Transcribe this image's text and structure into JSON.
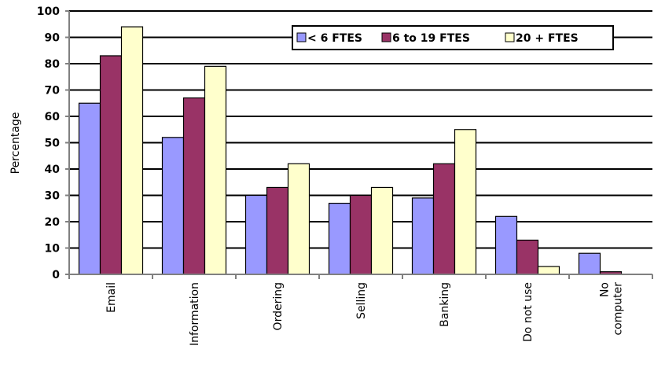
{
  "chart_data": {
    "type": "bar",
    "title": "",
    "xlabel": "",
    "ylabel": "Percentage",
    "ylim": [
      0,
      100
    ],
    "yticks": [
      0,
      10,
      20,
      30,
      40,
      50,
      60,
      70,
      80,
      90,
      100
    ],
    "grid": true,
    "legend_position": "top-right",
    "categories": [
      "Email",
      "Information",
      "Ordering",
      "Selling",
      "Banking",
      "Do not use",
      [
        "No",
        "computer"
      ]
    ],
    "series": [
      {
        "name": "< 6 FTES",
        "color": "#9999ff",
        "values": [
          65,
          52,
          30,
          27,
          29,
          22,
          8
        ]
      },
      {
        "name": "6 to 19 FTES",
        "color": "#993366",
        "values": [
          83,
          67,
          33,
          30,
          42,
          13,
          1
        ]
      },
      {
        "name": "20 + FTES",
        "color": "#ffffcc",
        "values": [
          94,
          79,
          42,
          33,
          55,
          3,
          0
        ]
      }
    ]
  }
}
